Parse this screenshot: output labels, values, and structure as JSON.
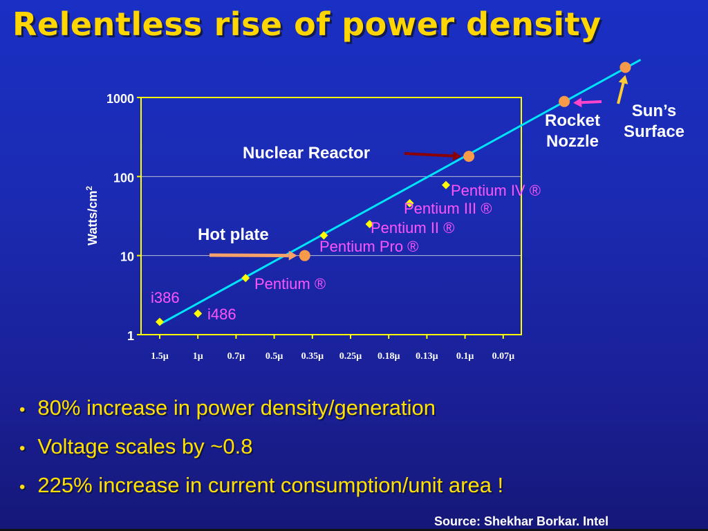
{
  "title": "Relentless rise of power density",
  "chart_data": {
    "type": "scatter",
    "ylabel": "Watts/cm",
    "ylabel_superscript": "2",
    "yscale": "log",
    "ylim": [
      1,
      1000
    ],
    "yticks": [
      "1",
      "10",
      "100",
      "1000"
    ],
    "categories": [
      "1.5μ",
      "1μ",
      "0.7μ",
      "0.5μ",
      "0.35μ",
      "0.25μ",
      "0.18μ",
      "0.13μ",
      "0.1μ",
      "0.07μ"
    ],
    "grid_y": [
      10,
      100
    ],
    "processors": [
      {
        "label": "i386",
        "x": 0.0,
        "y": 1.45
      },
      {
        "label": "i486",
        "x": 1.0,
        "y": 1.85
      },
      {
        "label": "Pentium ®",
        "x": 2.25,
        "y": 5.2
      },
      {
        "label": "Pentium Pro ®",
        "x": 4.3,
        "y": 18
      },
      {
        "label": "Pentium II ®",
        "x": 5.5,
        "y": 25
      },
      {
        "label": "Pentium III ®",
        "x": 6.55,
        "y": 46
      },
      {
        "label": "Pentium IV ®",
        "x": 7.5,
        "y": 78
      }
    ],
    "references": [
      {
        "label": "Hot plate",
        "x": 3.8,
        "y": 10
      },
      {
        "label": "Nuclear Reactor",
        "x": 8.1,
        "y": 180
      },
      {
        "label": "Rocket Nozzle",
        "x": 10.6,
        "y": 890
      },
      {
        "label": "Sun’s Surface",
        "x": 12.2,
        "y": 2400
      }
    ],
    "trend": {
      "from": [
        0.0,
        1.35
      ],
      "to": [
        12.6,
        3000
      ]
    },
    "colors": {
      "frame": "#ffff00",
      "processor_marker": "#ffff00",
      "processor_label": "#ff55ff",
      "reference_marker": "#f79a4a",
      "reference_label": "#ffffff",
      "trend_line": "#00e5ff",
      "hot_plate_arrow": "#f6a06a",
      "nuclear_arrow": "#8b0000",
      "rocket_arrow": "#ff44cc",
      "sun_arrow": "#ffcc33",
      "axis_text": "#ffffff"
    }
  },
  "bullets": [
    "80% increase in power density/generation",
    "Voltage scales by ~0.8",
    "225% increase in current consumption/unit area !"
  ],
  "bullet_marker": "•",
  "source": "Source: Shekhar Borkar. Intel"
}
